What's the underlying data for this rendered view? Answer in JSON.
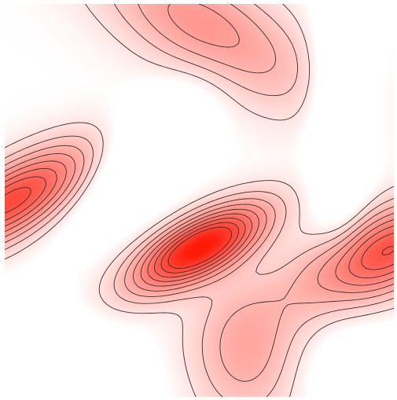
{
  "chart_data": {
    "type": "heatmap",
    "title": "",
    "xlabel": "",
    "ylabel": "",
    "grid": false,
    "legend": "none",
    "colormap": [
      "#ffffff",
      "#ff1a08"
    ],
    "contour_color": "#3a3030",
    "contour_levels": [
      0.08,
      0.17,
      0.26,
      0.35,
      0.44,
      0.53,
      0.62,
      0.71,
      0.8
    ],
    "components": [
      {
        "name": "central-peak",
        "cx": 0.5,
        "cy": 0.38,
        "sx": 0.13,
        "sy": 0.05,
        "angle": 28,
        "amp": 1.0
      },
      {
        "name": "left-band",
        "cx": 0.02,
        "cy": 0.5,
        "sx": 0.17,
        "sy": 0.06,
        "angle": 30,
        "amp": 0.76
      },
      {
        "name": "right-band",
        "cx": 0.98,
        "cy": 0.37,
        "sx": 0.16,
        "sy": 0.07,
        "angle": 25,
        "amp": 0.72
      },
      {
        "name": "top-ridge",
        "cx": 0.52,
        "cy": 0.94,
        "sx": 0.22,
        "sy": 0.09,
        "angle": -30,
        "amp": 0.4
      },
      {
        "name": "bottom-center-ridge",
        "cx": 0.62,
        "cy": 0.12,
        "sx": 0.1,
        "sy": 0.13,
        "angle": 0,
        "amp": 0.32
      },
      {
        "name": "top-left-valley",
        "cx": 0.35,
        "cy": 0.62,
        "sx": 0.07,
        "sy": 0.16,
        "angle": -45,
        "amp": -0.28
      },
      {
        "name": "right-valley",
        "cx": 0.86,
        "cy": 0.72,
        "sx": 0.05,
        "sy": 0.22,
        "angle": 0,
        "amp": -0.3
      },
      {
        "name": "bottom-left-valley",
        "cx": 0.12,
        "cy": 0.1,
        "sx": 0.16,
        "sy": 0.08,
        "angle": -20,
        "amp": -0.22
      },
      {
        "name": "bottom-right-valley",
        "cx": 0.95,
        "cy": 0.05,
        "sx": 0.12,
        "sy": 0.08,
        "angle": 0,
        "amp": -0.2
      }
    ]
  }
}
